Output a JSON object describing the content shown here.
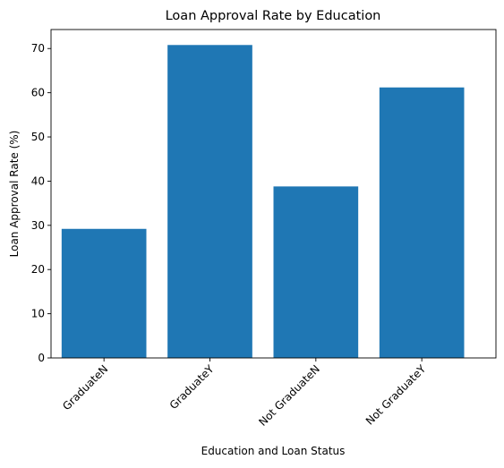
{
  "chart_data": {
    "type": "bar",
    "title": "Loan Approval Rate by Education",
    "xlabel": "Education and Loan Status",
    "ylabel": "Loan Approval Rate (%)",
    "categories": [
      "GraduateN",
      "GraduateY",
      "Not GraduateN",
      "Not GraduateY"
    ],
    "values": [
      29.2,
      70.8,
      38.8,
      61.2
    ],
    "ylim": [
      0,
      74.3
    ],
    "yticks": [
      0,
      10,
      20,
      30,
      40,
      50,
      60,
      70
    ],
    "bar_color": "#1f77b4",
    "grid": false,
    "x_tick_rotation": 45
  }
}
